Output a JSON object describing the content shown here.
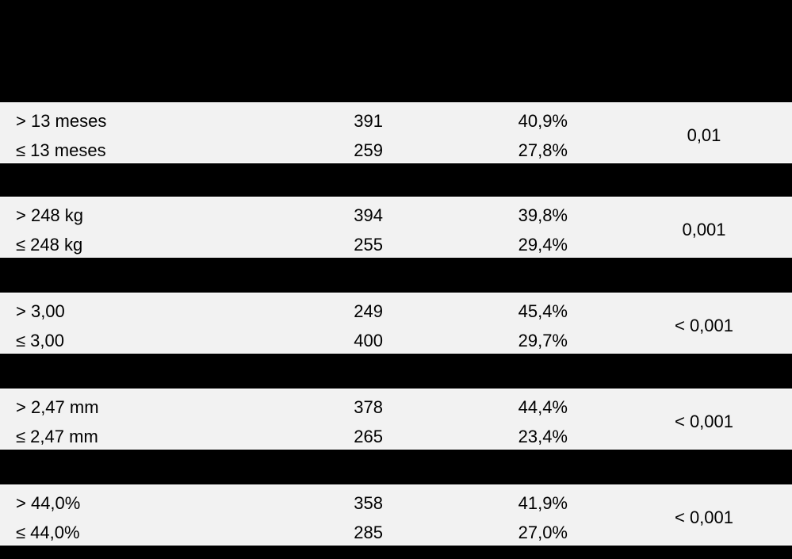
{
  "table": {
    "groups": [
      {
        "rows": [
          [
            "> 13 meses",
            "391",
            "40,9%"
          ],
          [
            "≤ 13 meses",
            "259",
            "27,8%"
          ]
        ],
        "p": "0,01"
      },
      {
        "rows": [
          [
            "> 248 kg",
            "394",
            "39,8%"
          ],
          [
            "≤ 248 kg",
            "255",
            "29,4%"
          ]
        ],
        "p": "0,001"
      },
      {
        "rows": [
          [
            "> 3,00",
            "249",
            "45,4%"
          ],
          [
            "≤ 3,00",
            "400",
            "29,7%"
          ]
        ],
        "p": "< 0,001"
      },
      {
        "rows": [
          [
            "> 2,47 mm",
            "378",
            "44,4%"
          ],
          [
            "≤ 2,47 mm",
            "265",
            "23,4%"
          ]
        ],
        "p": "< 0,001"
      },
      {
        "rows": [
          [
            "> 44,0%",
            "358",
            "41,9%"
          ],
          [
            "≤ 44,0%",
            "285",
            "27,0%"
          ]
        ],
        "p": "< 0,001"
      }
    ]
  }
}
